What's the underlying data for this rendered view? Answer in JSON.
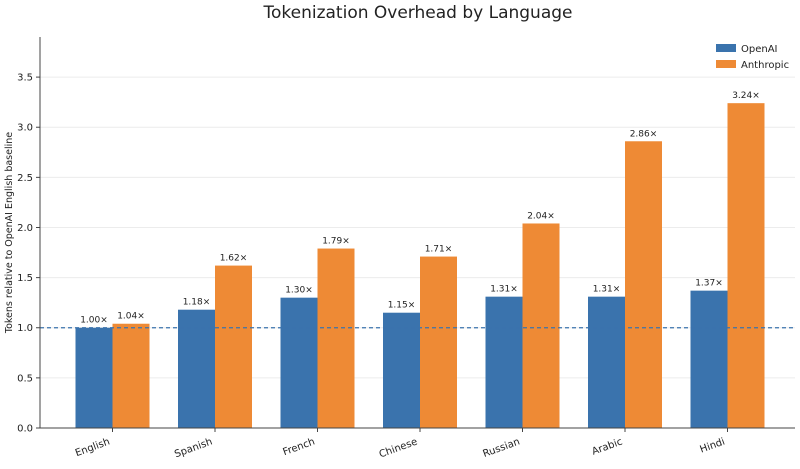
{
  "chart_data": {
    "type": "bar",
    "title": "Tokenization Overhead by Language",
    "xlabel": "",
    "ylabel": "Tokens relative to OpenAI English baseline",
    "categories": [
      "English",
      "Spanish",
      "French",
      "Chinese",
      "Russian",
      "Arabic",
      "Hindi"
    ],
    "series": [
      {
        "name": "OpenAI",
        "color": "#3a73ad",
        "values": [
          1.0,
          1.18,
          1.3,
          1.15,
          1.31,
          1.31,
          1.37
        ],
        "labels": [
          "1.00×",
          "1.18×",
          "1.30×",
          "1.15×",
          "1.31×",
          "1.31×",
          "1.37×"
        ]
      },
      {
        "name": "Anthropic",
        "color": "#ee8a35",
        "values": [
          1.04,
          1.62,
          1.79,
          1.71,
          2.04,
          2.86,
          3.24
        ],
        "labels": [
          "1.04×",
          "1.62×",
          "1.79×",
          "1.71×",
          "2.04×",
          "2.86×",
          "3.24×"
        ]
      }
    ],
    "ylim": [
      0,
      3.9
    ],
    "yticks": [
      "0.0",
      "0.5",
      "1.0",
      "1.5",
      "2.0",
      "2.5",
      "3.0",
      "3.5"
    ],
    "baseline": 1.0,
    "baseline_color": "#3a73ad",
    "grid": true,
    "legend_position": "top-right"
  }
}
